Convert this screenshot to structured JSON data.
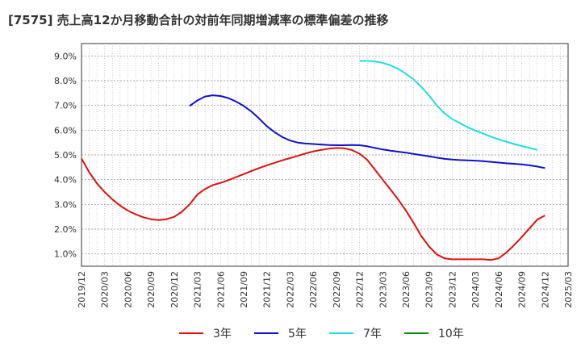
{
  "chart_data": {
    "type": "line",
    "title": "[7575]  売上高12か月移動合計の対前年同期増減率の標準偏差の推移",
    "y_ticks": [
      "1.0%",
      "2.0%",
      "3.0%",
      "4.0%",
      "5.0%",
      "6.0%",
      "7.0%",
      "8.0%",
      "9.0%"
    ],
    "x_ticks": [
      "2019/12",
      "2020/03",
      "2020/06",
      "2020/09",
      "2020/12",
      "2021/03",
      "2021/06",
      "2021/09",
      "2021/12",
      "2022/03",
      "2022/06",
      "2022/09",
      "2022/12",
      "2023/03",
      "2023/06",
      "2023/09",
      "2023/12",
      "2024/03",
      "2024/06",
      "2024/09",
      "2024/12",
      "2025/03"
    ],
    "ylim": [
      0.5,
      9.5
    ],
    "grid": true,
    "legend_position": "bottom",
    "series": [
      {
        "name": "3年",
        "color": "#dd1111",
        "data": [
          [
            "2019/12",
            4.85
          ],
          [
            "2020/01",
            4.3
          ],
          [
            "2020/02",
            3.85
          ],
          [
            "2020/03",
            3.5
          ],
          [
            "2020/04",
            3.2
          ],
          [
            "2020/05",
            2.95
          ],
          [
            "2020/06",
            2.75
          ],
          [
            "2020/07",
            2.6
          ],
          [
            "2020/08",
            2.48
          ],
          [
            "2020/09",
            2.4
          ],
          [
            "2020/10",
            2.37
          ],
          [
            "2020/11",
            2.4
          ],
          [
            "2020/12",
            2.5
          ],
          [
            "2021/01",
            2.7
          ],
          [
            "2021/02",
            3.0
          ],
          [
            "2021/03",
            3.4
          ],
          [
            "2021/04",
            3.62
          ],
          [
            "2021/05",
            3.78
          ],
          [
            "2021/06",
            3.87
          ],
          [
            "2021/07",
            3.98
          ],
          [
            "2021/08",
            4.1
          ],
          [
            "2021/09",
            4.22
          ],
          [
            "2021/10",
            4.35
          ],
          [
            "2021/11",
            4.47
          ],
          [
            "2021/12",
            4.58
          ],
          [
            "2022/01",
            4.68
          ],
          [
            "2022/02",
            4.78
          ],
          [
            "2022/03",
            4.87
          ],
          [
            "2022/04",
            4.96
          ],
          [
            "2022/05",
            5.06
          ],
          [
            "2022/06",
            5.14
          ],
          [
            "2022/07",
            5.2
          ],
          [
            "2022/08",
            5.25
          ],
          [
            "2022/09",
            5.28
          ],
          [
            "2022/10",
            5.27
          ],
          [
            "2022/11",
            5.2
          ],
          [
            "2022/12",
            5.05
          ],
          [
            "2023/01",
            4.8
          ],
          [
            "2023/02",
            4.4
          ],
          [
            "2023/03",
            4.0
          ],
          [
            "2023/04",
            3.6
          ],
          [
            "2023/05",
            3.2
          ],
          [
            "2023/06",
            2.75
          ],
          [
            "2023/07",
            2.25
          ],
          [
            "2023/08",
            1.72
          ],
          [
            "2023/09",
            1.3
          ],
          [
            "2023/10",
            0.98
          ],
          [
            "2023/11",
            0.82
          ],
          [
            "2023/12",
            0.78
          ],
          [
            "2024/01",
            0.78
          ],
          [
            "2024/02",
            0.78
          ],
          [
            "2024/03",
            0.78
          ],
          [
            "2024/04",
            0.78
          ],
          [
            "2024/05",
            0.75
          ],
          [
            "2024/06",
            0.82
          ],
          [
            "2024/07",
            1.05
          ],
          [
            "2024/08",
            1.35
          ],
          [
            "2024/09",
            1.68
          ],
          [
            "2024/10",
            2.03
          ],
          [
            "2024/11",
            2.38
          ],
          [
            "2024/12",
            2.55
          ]
        ]
      },
      {
        "name": "5年",
        "color": "#1111cc",
        "data": [
          [
            "2021/02",
            6.98
          ],
          [
            "2021/03",
            7.2
          ],
          [
            "2021/04",
            7.36
          ],
          [
            "2021/05",
            7.41
          ],
          [
            "2021/06",
            7.38
          ],
          [
            "2021/07",
            7.3
          ],
          [
            "2021/08",
            7.16
          ],
          [
            "2021/09",
            6.98
          ],
          [
            "2021/10",
            6.75
          ],
          [
            "2021/11",
            6.47
          ],
          [
            "2021/12",
            6.16
          ],
          [
            "2022/01",
            5.92
          ],
          [
            "2022/02",
            5.72
          ],
          [
            "2022/03",
            5.58
          ],
          [
            "2022/04",
            5.5
          ],
          [
            "2022/05",
            5.46
          ],
          [
            "2022/06",
            5.44
          ],
          [
            "2022/07",
            5.42
          ],
          [
            "2022/08",
            5.4
          ],
          [
            "2022/09",
            5.39
          ],
          [
            "2022/10",
            5.39
          ],
          [
            "2022/11",
            5.4
          ],
          [
            "2022/12",
            5.39
          ],
          [
            "2023/01",
            5.35
          ],
          [
            "2023/02",
            5.28
          ],
          [
            "2023/03",
            5.22
          ],
          [
            "2023/04",
            5.17
          ],
          [
            "2023/05",
            5.13
          ],
          [
            "2023/06",
            5.09
          ],
          [
            "2023/07",
            5.04
          ],
          [
            "2023/08",
            4.99
          ],
          [
            "2023/09",
            4.94
          ],
          [
            "2023/10",
            4.89
          ],
          [
            "2023/11",
            4.84
          ],
          [
            "2023/12",
            4.81
          ],
          [
            "2024/01",
            4.79
          ],
          [
            "2024/02",
            4.78
          ],
          [
            "2024/03",
            4.77
          ],
          [
            "2024/04",
            4.75
          ],
          [
            "2024/05",
            4.72
          ],
          [
            "2024/06",
            4.69
          ],
          [
            "2024/07",
            4.66
          ],
          [
            "2024/08",
            4.64
          ],
          [
            "2024/09",
            4.62
          ],
          [
            "2024/10",
            4.58
          ],
          [
            "2024/11",
            4.53
          ],
          [
            "2024/12",
            4.47
          ]
        ]
      },
      {
        "name": "7年",
        "color": "#22dddd",
        "data": [
          [
            "2022/12",
            8.8
          ],
          [
            "2023/01",
            8.8
          ],
          [
            "2023/02",
            8.78
          ],
          [
            "2023/03",
            8.72
          ],
          [
            "2023/04",
            8.62
          ],
          [
            "2023/05",
            8.48
          ],
          [
            "2023/06",
            8.28
          ],
          [
            "2023/07",
            8.05
          ],
          [
            "2023/08",
            7.75
          ],
          [
            "2023/09",
            7.4
          ],
          [
            "2023/10",
            7.0
          ],
          [
            "2023/11",
            6.68
          ],
          [
            "2023/12",
            6.45
          ],
          [
            "2024/01",
            6.28
          ],
          [
            "2024/02",
            6.12
          ],
          [
            "2024/03",
            5.98
          ],
          [
            "2024/04",
            5.86
          ],
          [
            "2024/05",
            5.74
          ],
          [
            "2024/06",
            5.63
          ],
          [
            "2024/07",
            5.53
          ],
          [
            "2024/08",
            5.44
          ],
          [
            "2024/09",
            5.36
          ],
          [
            "2024/10",
            5.28
          ],
          [
            "2024/11",
            5.21
          ]
        ]
      },
      {
        "name": "10年",
        "color": "#118811",
        "data": []
      }
    ]
  }
}
